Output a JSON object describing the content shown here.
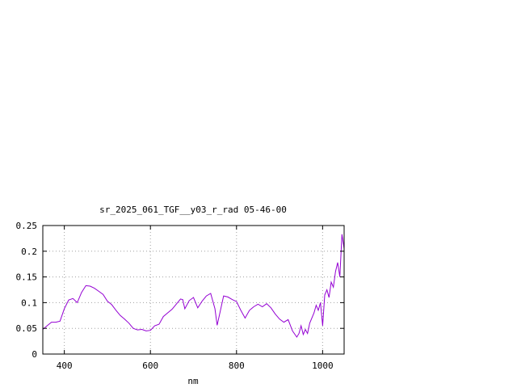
{
  "chart_data": {
    "type": "line",
    "title": "sr_2025_061_TGF__y03_r_rad 05-46-00",
    "xlabel": "nm",
    "ylabel": "",
    "xlim": [
      350,
      1050
    ],
    "ylim": [
      0,
      0.25
    ],
    "x_ticks": [
      400,
      600,
      800,
      1000
    ],
    "x_tick_labels": [
      "400",
      "600",
      "800",
      "1000"
    ],
    "y_ticks": [
      0,
      0.05,
      0.1,
      0.15,
      0.2,
      0.25
    ],
    "y_tick_labels": [
      "0",
      "0.05",
      "0.1",
      "0.15",
      "0.2",
      "0.25"
    ],
    "grid": true,
    "legend": "none",
    "series": [
      {
        "color": "#9400d3",
        "x": [
          350,
          360,
          370,
          380,
          390,
          400,
          410,
          420,
          430,
          440,
          450,
          460,
          470,
          480,
          490,
          500,
          510,
          520,
          530,
          540,
          550,
          560,
          570,
          580,
          590,
          600,
          610,
          620,
          630,
          640,
          650,
          660,
          670,
          675,
          680,
          690,
          700,
          710,
          720,
          730,
          740,
          750,
          755,
          760,
          770,
          780,
          790,
          800,
          810,
          820,
          830,
          840,
          850,
          860,
          870,
          880,
          890,
          900,
          910,
          920,
          930,
          940,
          945,
          950,
          955,
          960,
          965,
          970,
          980,
          985,
          990,
          995,
          1000,
          1005,
          1010,
          1015,
          1020,
          1025,
          1030,
          1035,
          1040,
          1045,
          1050
        ],
        "y": [
          0.048,
          0.055,
          0.062,
          0.062,
          0.064,
          0.088,
          0.105,
          0.108,
          0.1,
          0.12,
          0.133,
          0.132,
          0.128,
          0.122,
          0.116,
          0.103,
          0.096,
          0.085,
          0.075,
          0.068,
          0.06,
          0.05,
          0.047,
          0.048,
          0.045,
          0.046,
          0.055,
          0.058,
          0.073,
          0.08,
          0.087,
          0.097,
          0.107,
          0.106,
          0.088,
          0.104,
          0.11,
          0.09,
          0.103,
          0.113,
          0.118,
          0.088,
          0.056,
          0.075,
          0.113,
          0.111,
          0.106,
          0.102,
          0.085,
          0.07,
          0.085,
          0.092,
          0.097,
          0.092,
          0.098,
          0.09,
          0.078,
          0.068,
          0.062,
          0.067,
          0.045,
          0.033,
          0.04,
          0.055,
          0.038,
          0.048,
          0.04,
          0.06,
          0.08,
          0.095,
          0.085,
          0.1,
          0.055,
          0.115,
          0.125,
          0.11,
          0.14,
          0.13,
          0.16,
          0.178,
          0.15,
          0.233,
          0.205
        ]
      }
    ]
  }
}
